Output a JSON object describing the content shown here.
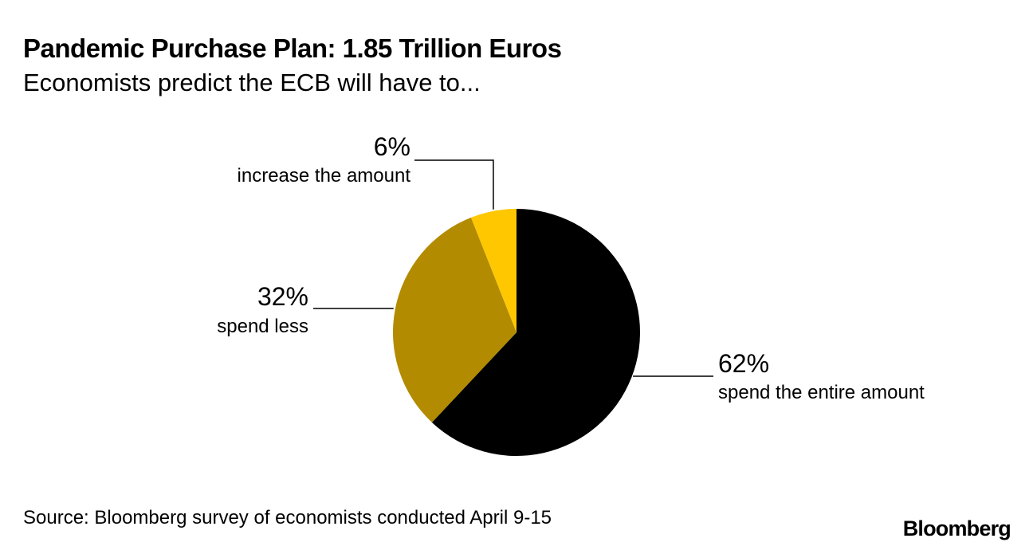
{
  "chart_data": {
    "type": "pie",
    "title": "Pandemic Purchase Plan: 1.85 Trillion Euros",
    "subtitle": "Economists predict the ECB will have to...",
    "slices": [
      {
        "label": "spend the entire amount",
        "value": 62,
        "value_label": "62%",
        "color": "#000000"
      },
      {
        "label": "spend less",
        "value": 32,
        "value_label": "32%",
        "color": "#B38B00"
      },
      {
        "label": "increase the amount",
        "value": 6,
        "value_label": "6%",
        "color": "#FFC700"
      }
    ]
  },
  "footer": {
    "source": "Source: Bloomberg survey of economists conducted April 9-15",
    "brand": "Bloomberg"
  }
}
